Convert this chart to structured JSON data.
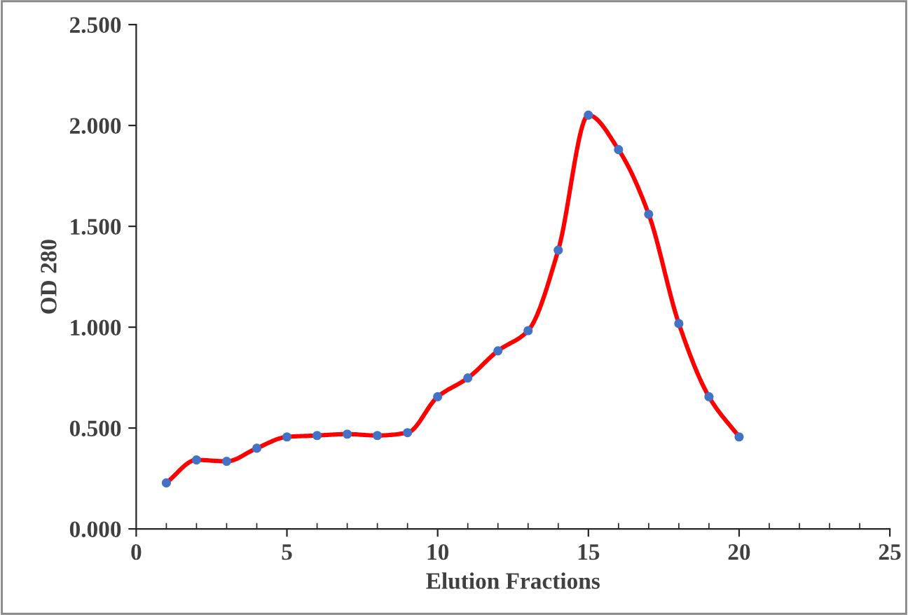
{
  "chart_data": {
    "type": "line",
    "xlabel": "Elution Fractions",
    "ylabel": "OD 280",
    "x": [
      1,
      2,
      3,
      4,
      5,
      6,
      7,
      8,
      9,
      10,
      11,
      12,
      13,
      14,
      15,
      16,
      17,
      18,
      19,
      20
    ],
    "series": [
      {
        "color": "#ff0000",
        "marker": "none",
        "values": [
          0.228,
          0.342,
          0.335,
          0.4,
          0.456,
          0.463,
          0.47,
          0.463,
          0.477,
          0.655,
          0.748,
          0.883,
          0.983,
          1.382,
          2.051,
          1.88,
          1.56,
          1.018,
          0.655,
          0.456
        ]
      },
      {
        "type": "scatter",
        "color": "#4472c4",
        "marker": "circle",
        "values": [
          0.228,
          0.342,
          0.335,
          0.4,
          0.456,
          0.463,
          0.47,
          0.463,
          0.477,
          0.655,
          0.748,
          0.883,
          0.983,
          1.382,
          2.051,
          1.88,
          1.56,
          1.018,
          0.655,
          0.456
        ]
      }
    ],
    "xlim": [
      0,
      25
    ],
    "xticks": [
      0,
      5,
      10,
      15,
      20,
      25
    ],
    "ylim": [
      0,
      2.5
    ],
    "yticks": [
      {
        "value": 0,
        "label": "0.000"
      },
      {
        "value": 0.5,
        "label": "0.500"
      },
      {
        "value": 1,
        "label": "1.000"
      },
      {
        "value": 1.5,
        "label": "1.500"
      },
      {
        "value": 2,
        "label": "2.000"
      },
      {
        "value": 2.5,
        "label": "2.500"
      }
    ],
    "grid": false,
    "legend": false
  }
}
